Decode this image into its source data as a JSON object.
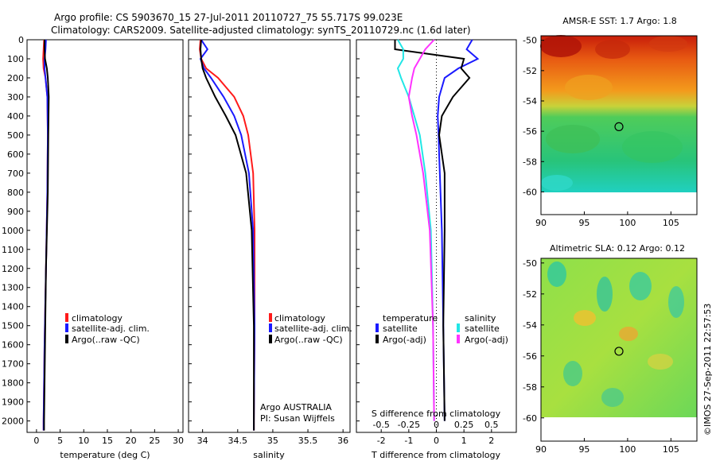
{
  "header": {
    "line1": "Argo profile: CS 5903670_15 27-Jul-2011 20110727_75 55.717S 99.023E",
    "line2": "Climatology: CARS2009. Satellite-adjusted climatology: synTS_20110729.nc (1.6d later)"
  },
  "depth_ticks": [
    "0",
    "100",
    "200",
    "300",
    "400",
    "500",
    "600",
    "700",
    "800",
    "900",
    "1000",
    "1100",
    "1200",
    "1300",
    "1400",
    "1500",
    "1600",
    "1700",
    "1800",
    "1900",
    "2000"
  ],
  "colors": {
    "climatology": "#ff1a1a",
    "satellite": "#1a1aff",
    "argo": "#000000",
    "sal_satellite": "#22e6e6",
    "sal_argo": "#ff33ff"
  },
  "chart_data": [
    {
      "type": "line",
      "title": "",
      "xlabel": "temperature (deg C)",
      "ylabel": "",
      "xlim": [
        -2,
        31
      ],
      "ylim": [
        2060,
        0
      ],
      "xticks": [
        "0",
        "5",
        "10",
        "15",
        "20",
        "25",
        "30"
      ],
      "legend": [
        "climatology",
        "satellite-adj. clim.",
        "Argo(..raw -QC)"
      ],
      "series": [
        {
          "name": "climatology",
          "depth": [
            0,
            50,
            100,
            150,
            200,
            300,
            500,
            800,
            1200,
            1600,
            2000,
            2050
          ],
          "values": [
            1.6,
            1.5,
            1.4,
            1.5,
            1.9,
            2.3,
            2.4,
            2.3,
            2.0,
            1.7,
            1.5,
            1.5
          ]
        },
        {
          "name": "satellite-adj. clim.",
          "depth": [
            0,
            50,
            100,
            150,
            200,
            300,
            500,
            800,
            1200,
            1600,
            2000,
            2050
          ],
          "values": [
            2.0,
            1.9,
            1.7,
            1.7,
            1.9,
            2.3,
            2.4,
            2.3,
            2.0,
            1.7,
            1.5,
            1.5
          ]
        },
        {
          "name": "Argo(..raw -QC)",
          "depth": [
            0,
            50,
            100,
            150,
            200,
            300,
            500,
            800,
            1200,
            1600,
            2000,
            2050
          ],
          "values": [
            1.7,
            1.7,
            1.8,
            2.2,
            2.4,
            2.6,
            2.5,
            2.4,
            2.0,
            1.8,
            1.6,
            1.6
          ]
        }
      ]
    },
    {
      "type": "line",
      "title": "",
      "xlabel": "salinity",
      "ylabel": "",
      "xlim": [
        33.8,
        36.1
      ],
      "ylim": [
        2060,
        0
      ],
      "xticks": [
        "34",
        "34.5",
        "35",
        "35.5",
        "36"
      ],
      "legend": [
        "climatology",
        "satellite-adj. clim.",
        "Argo(..raw -QC)"
      ],
      "annotation": [
        "Argo AUSTRALIA",
        "PI: Susan Wijffels"
      ],
      "series": [
        {
          "name": "climatology",
          "depth": [
            0,
            50,
            100,
            150,
            200,
            300,
            400,
            500,
            700,
            1000,
            1500,
            2000,
            2050
          ],
          "values": [
            33.97,
            33.96,
            33.98,
            34.05,
            34.22,
            34.45,
            34.58,
            34.65,
            34.72,
            34.74,
            34.74,
            34.73,
            34.73
          ]
        },
        {
          "name": "satellite-adj. clim.",
          "depth": [
            0,
            50,
            100,
            150,
            200,
            300,
            400,
            500,
            700,
            1000,
            1500,
            2000,
            2050
          ],
          "values": [
            33.98,
            34.07,
            33.97,
            34.02,
            34.12,
            34.3,
            34.45,
            34.55,
            34.66,
            34.72,
            34.74,
            34.73,
            34.73
          ]
        },
        {
          "name": "Argo(..raw -QC)",
          "depth": [
            0,
            50,
            100,
            150,
            200,
            300,
            400,
            500,
            700,
            1000,
            1500,
            2000,
            2050
          ],
          "values": [
            33.98,
            33.97,
            33.98,
            34.0,
            34.05,
            34.18,
            34.33,
            34.47,
            34.62,
            34.7,
            34.73,
            34.73,
            34.73
          ]
        }
      ]
    },
    {
      "type": "line",
      "title": "",
      "xlabel": "T difference from climatology",
      "x2label": "S difference from climatology",
      "ylabel": "",
      "xlim": [
        -2.9,
        2.9
      ],
      "ylim": [
        2060,
        0
      ],
      "xticks": [
        "-2",
        "-1",
        "0",
        "1",
        "2"
      ],
      "x2ticks": [
        "-0.5",
        "-0.25",
        "0",
        "0.25",
        "0.5"
      ],
      "legend_groups": [
        "temperature",
        "salinity"
      ],
      "legend": [
        "satellite",
        "Argo(-adj)",
        "satellite",
        "Argo(-adj)"
      ],
      "series": [
        {
          "name": "temperature satellite",
          "depth": [
            0,
            50,
            100,
            150,
            200,
            300,
            400,
            500,
            600,
            800,
            1000,
            1500,
            2000
          ],
          "values": [
            1.3,
            1.1,
            1.5,
            0.8,
            0.3,
            0.1,
            0.05,
            0.08,
            0.1,
            0.15,
            0.2,
            0.25,
            0.3
          ]
        },
        {
          "name": "temperature Argo(-adj)",
          "depth": [
            0,
            50,
            100,
            150,
            200,
            300,
            400,
            500,
            700,
            1000,
            1500,
            2000
          ],
          "values": [
            -1.5,
            -1.5,
            1.0,
            0.9,
            1.2,
            0.6,
            0.2,
            0.1,
            0.3,
            0.3,
            0.25,
            0.3
          ]
        },
        {
          "name": "salinity satellite",
          "depth": [
            0,
            50,
            100,
            150,
            200,
            300,
            400,
            500,
            700,
            1000,
            1500,
            2000
          ],
          "values": [
            -0.35,
            -0.3,
            -0.3,
            -0.35,
            -0.32,
            -0.25,
            -0.2,
            -0.15,
            -0.1,
            -0.05,
            -0.03,
            -0.02
          ]
        },
        {
          "name": "salinity Argo(-adj)",
          "depth": [
            0,
            50,
            100,
            150,
            200,
            300,
            400,
            500,
            700,
            1000,
            1500,
            2000
          ],
          "values": [
            -0.02,
            -0.1,
            -0.15,
            -0.2,
            -0.22,
            -0.25,
            -0.22,
            -0.18,
            -0.12,
            -0.06,
            -0.03,
            -0.02
          ]
        }
      ]
    },
    {
      "type": "heatmap",
      "title": "AMSR-E SST: 1.7 Argo: 1.8",
      "xlim": [
        90,
        108
      ],
      "ylim": [
        -61.5,
        -49.7
      ],
      "xticks": [
        "90",
        "95",
        "100",
        "105"
      ],
      "yticks": [
        "-50",
        "-52",
        "-54",
        "-56",
        "-58",
        "-60"
      ],
      "marker": {
        "lon": 99.0,
        "lat": -55.7
      }
    },
    {
      "type": "heatmap",
      "title": "Altimetric SLA: 0.12 Argo: 0.12",
      "xlim": [
        90,
        108
      ],
      "ylim": [
        -61.5,
        -49.7
      ],
      "xticks": [
        "90",
        "95",
        "100",
        "105"
      ],
      "yticks": [
        "-50",
        "-52",
        "-54",
        "-56",
        "-58",
        "-60"
      ],
      "marker": {
        "lon": 99.0,
        "lat": -55.7
      }
    }
  ],
  "footer": {
    "stamp": "©IMOS 27-Sep-2011 22:57:53"
  }
}
